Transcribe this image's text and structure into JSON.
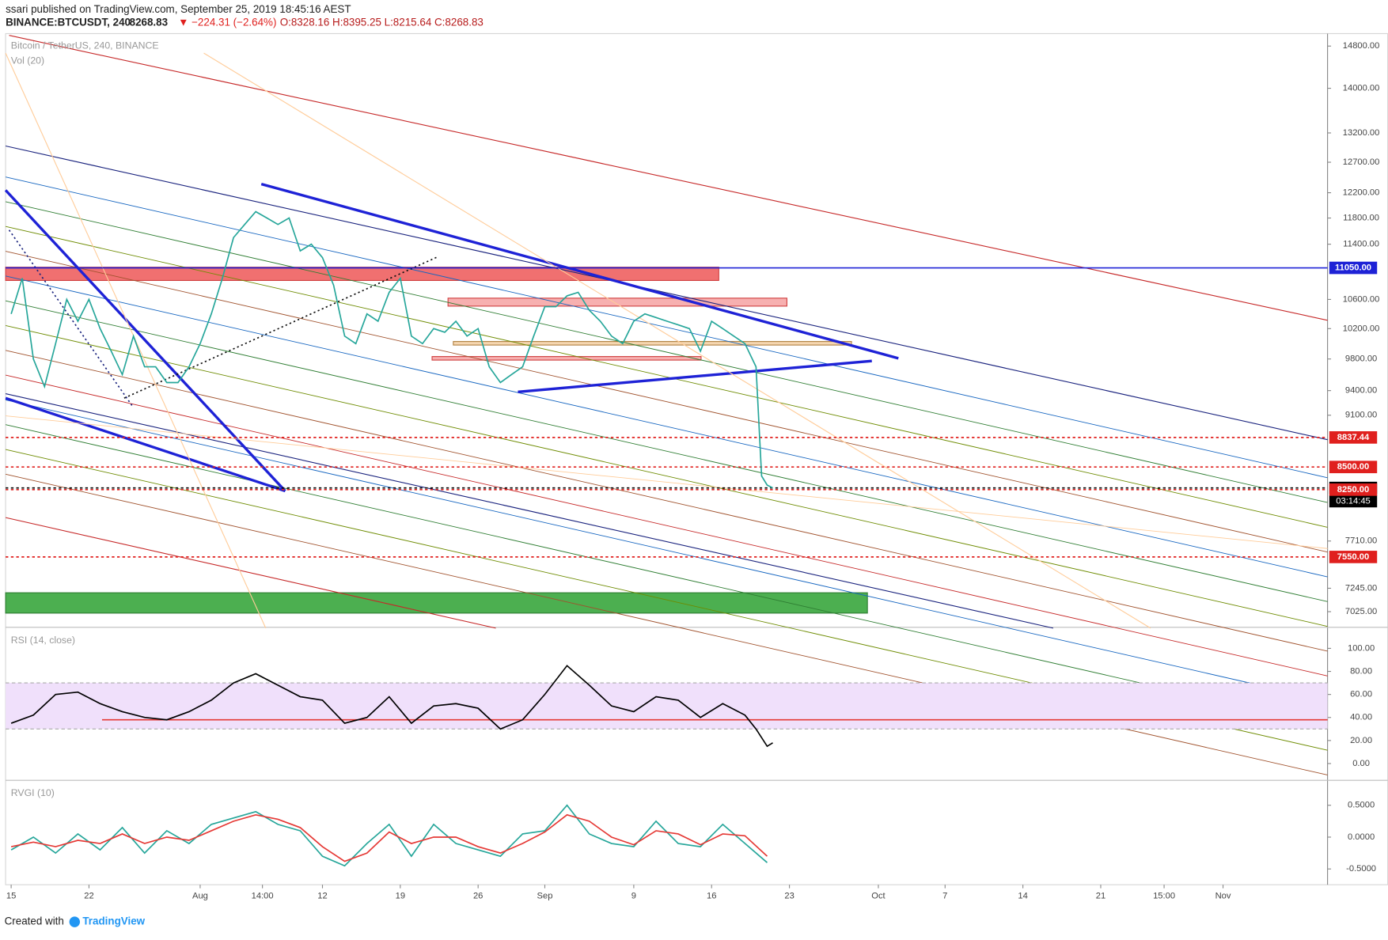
{
  "header": {
    "publisher": "ssari published on TradingView.com, September 25, 2019 18:45:16 AEST",
    "symbol": "BINANCE:BTCUSDT, 240",
    "last": "8268.83",
    "change": "▼ −224.31 (−2.64%)",
    "ohlc": "O:8328.16 H:8395.25 L:8215.64 C:8268.83"
  },
  "chart_data": [
    {
      "type": "line",
      "title": "Bitcoin / TetherUS, 240, BINANCE",
      "subtitle": "Vol (20)",
      "log_scale": true,
      "x": [
        0,
        1,
        2,
        3,
        4,
        5,
        6,
        7,
        8,
        9,
        10,
        11,
        12,
        13,
        14,
        15,
        16,
        17,
        18,
        19,
        20,
        21,
        22,
        23,
        24,
        25,
        26,
        27,
        28,
        29,
        30,
        31,
        32,
        33,
        34,
        35,
        36,
        37,
        38,
        39,
        40,
        41,
        42,
        43,
        44,
        45,
        46,
        47,
        48,
        49,
        50,
        51,
        52,
        53,
        54,
        55,
        56,
        57,
        58,
        59,
        60,
        61,
        62,
        63,
        64,
        65,
        66,
        67,
        67.5,
        68,
        68.5
      ],
      "series": [
        {
          "color": "#26a69a",
          "values": [
            10400,
            10900,
            9800,
            9450,
            10000,
            10600,
            10300,
            10600,
            10200,
            9900,
            9600,
            10100,
            9700,
            9700,
            9500,
            9500,
            9700,
            10000,
            10400,
            10900,
            11500,
            11700,
            11900,
            11800,
            11700,
            11800,
            11300,
            11400,
            11200,
            10800,
            10100,
            10000,
            10400,
            10300,
            10700,
            10900,
            10100,
            10000,
            10200,
            10150,
            10300,
            10100,
            10200,
            9700,
            9500,
            9600,
            9700,
            10100,
            10500,
            10500,
            10650,
            10700,
            10450,
            10300,
            10100,
            10000,
            10300,
            10400,
            10350,
            10300,
            10250,
            10200,
            9900,
            10300,
            10200,
            10100,
            10000,
            9700,
            8400,
            8300,
            8268.83
          ]
        }
      ],
      "xlim": [
        -0.5,
        118.4
      ],
      "ylim": [
        6890,
        15010
      ],
      "xticks": [
        {
          "value": 0,
          "label": "15"
        },
        {
          "value": 7,
          "label": "22"
        },
        {
          "value": 17,
          "label": "Aug"
        },
        {
          "value": 22.6,
          "label": "14:00"
        },
        {
          "value": 28,
          "label": "12"
        },
        {
          "value": 35,
          "label": "19"
        },
        {
          "value": 42,
          "label": "26"
        },
        {
          "value": 48,
          "label": "Sep"
        },
        {
          "value": 56,
          "label": "9"
        },
        {
          "value": 63,
          "label": "16"
        },
        {
          "value": 70,
          "label": "23"
        },
        {
          "value": 78,
          "label": "Oct"
        },
        {
          "value": 84,
          "label": "7"
        },
        {
          "value": 91,
          "label": "14"
        },
        {
          "value": 98,
          "label": "21"
        },
        {
          "value": 103.7,
          "label": "15:00"
        },
        {
          "value": 109,
          "label": "Nov"
        }
      ],
      "yticks": [
        {
          "value": 14800,
          "label": "14800.00"
        },
        {
          "value": 14000,
          "label": "14000.00"
        },
        {
          "value": 13200,
          "label": "13200.00"
        },
        {
          "value": 12700,
          "label": "12700.00"
        },
        {
          "value": 12200,
          "label": "12200.00"
        },
        {
          "value": 11800,
          "label": "11800.00"
        },
        {
          "value": 11400,
          "label": "11400.00"
        },
        {
          "value": 10600,
          "label": "10600.00"
        },
        {
          "value": 10200,
          "label": "10200.00"
        },
        {
          "value": 9800,
          "label": "9800.00"
        },
        {
          "value": 9400,
          "label": "9400.00"
        },
        {
          "value": 9100,
          "label": "9100.00"
        },
        {
          "value": 7710,
          "label": "7710.00"
        },
        {
          "value": 7245,
          "label": "7245.00"
        },
        {
          "value": 7025,
          "label": "7025.00"
        }
      ],
      "price_tags": [
        {
          "value": 11050,
          "label": "11050.00",
          "color": "#1e22d6"
        },
        {
          "value": 8837.44,
          "label": "8837.44",
          "color": "#e0201e"
        },
        {
          "value": 8500,
          "label": "8500.00",
          "color": "#e0201e"
        },
        {
          "value": 8268.83,
          "label": "8268.83",
          "color": "#000000"
        },
        {
          "value": 8250,
          "label": "8250.00",
          "color": "#e0201e"
        },
        {
          "value": 7550,
          "label": "7550.00",
          "color": "#e0201e"
        }
      ],
      "countdown": "03:14:45"
    },
    {
      "type": "line",
      "title": "RSI (14, close)",
      "band": [
        30,
        70
      ],
      "level": 38,
      "x": [
        0,
        2,
        4,
        6,
        8,
        10,
        12,
        14,
        16,
        18,
        20,
        22,
        24,
        26,
        28,
        30,
        32,
        34,
        36,
        38,
        40,
        42,
        44,
        46,
        48,
        50,
        52,
        54,
        56,
        58,
        60,
        62,
        64,
        66,
        67,
        68,
        68.5
      ],
      "series": [
        {
          "color": "#000000",
          "values": [
            35,
            42,
            60,
            62,
            52,
            45,
            40,
            38,
            45,
            55,
            70,
            78,
            68,
            58,
            55,
            35,
            40,
            58,
            35,
            50,
            52,
            48,
            30,
            38,
            60,
            85,
            68,
            50,
            45,
            58,
            55,
            40,
            52,
            42,
            30,
            15,
            18
          ]
        }
      ],
      "ylim": [
        -11.5,
        116
      ],
      "yticks": [
        {
          "value": 100,
          "label": "100.00"
        },
        {
          "value": 80,
          "label": "80.00"
        },
        {
          "value": 60,
          "label": "60.00"
        },
        {
          "value": 40,
          "label": "40.00"
        },
        {
          "value": 20,
          "label": "20.00"
        },
        {
          "value": 0,
          "label": "0.00"
        }
      ]
    },
    {
      "type": "line",
      "title": "RVGI (10)",
      "x": [
        0,
        2,
        4,
        6,
        8,
        10,
        12,
        14,
        16,
        18,
        20,
        22,
        24,
        26,
        28,
        30,
        32,
        34,
        36,
        38,
        40,
        42,
        44,
        46,
        48,
        50,
        52,
        54,
        56,
        58,
        60,
        62,
        64,
        66,
        68
      ],
      "series": [
        {
          "color": "#26a69a",
          "values": [
            -0.2,
            0.0,
            -0.25,
            0.05,
            -0.2,
            0.15,
            -0.25,
            0.1,
            -0.1,
            0.2,
            0.3,
            0.4,
            0.2,
            0.1,
            -0.3,
            -0.45,
            -0.1,
            0.2,
            -0.3,
            0.2,
            -0.1,
            -0.2,
            -0.3,
            0.05,
            0.1,
            0.5,
            0.05,
            -0.1,
            -0.15,
            0.25,
            -0.1,
            -0.15,
            0.2,
            -0.1,
            -0.4
          ]
        },
        {
          "color": "#e53935",
          "values": [
            -0.15,
            -0.08,
            -0.15,
            -0.05,
            -0.1,
            0.05,
            -0.1,
            0.0,
            -0.05,
            0.1,
            0.25,
            0.35,
            0.28,
            0.15,
            -0.15,
            -0.38,
            -0.25,
            0.08,
            -0.1,
            0.0,
            0.0,
            -0.15,
            -0.25,
            -0.1,
            0.08,
            0.35,
            0.25,
            0.0,
            -0.12,
            0.1,
            0.05,
            -0.12,
            0.05,
            0.02,
            -0.3
          ]
        }
      ],
      "ylim": [
        -0.72,
        0.85
      ],
      "yticks": [
        {
          "value": 0.5,
          "label": "0.5000"
        },
        {
          "value": 0,
          "label": "0.0000"
        },
        {
          "value": -0.5,
          "label": "-0.5000"
        }
      ]
    }
  ],
  "footer": {
    "created": "Created with",
    "brand": "TradingView"
  }
}
